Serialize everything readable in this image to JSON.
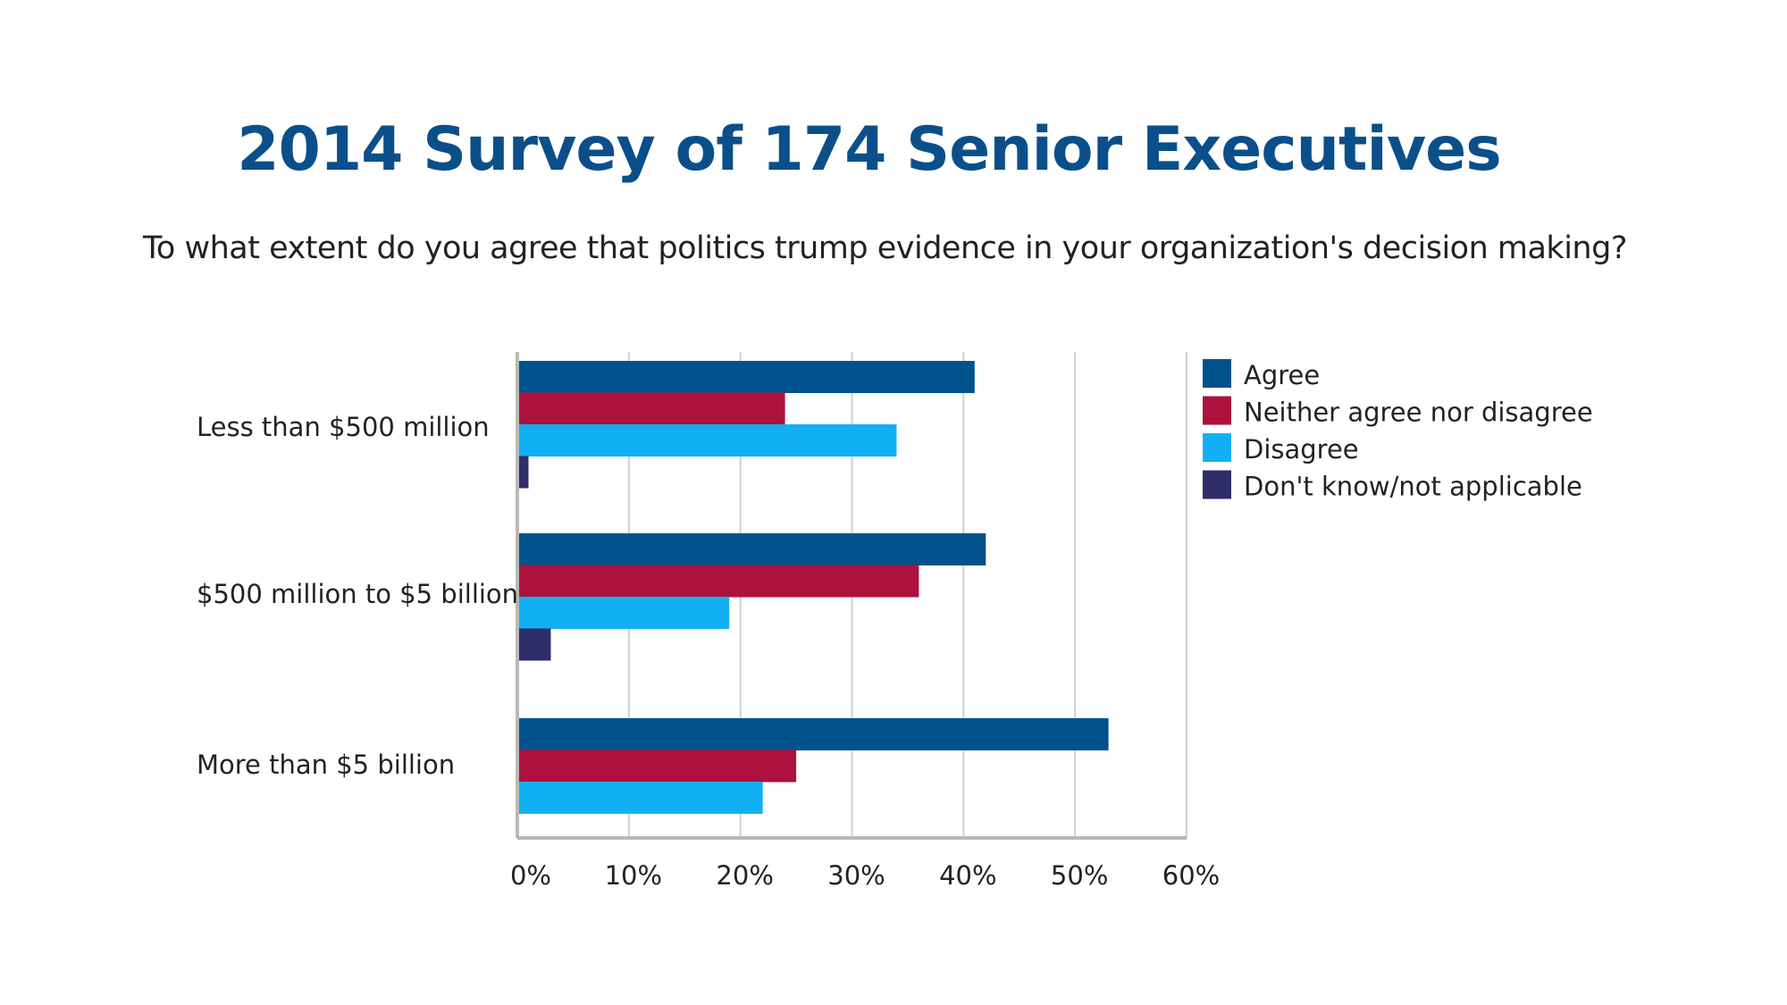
{
  "chart_data": {
    "type": "bar",
    "orientation": "horizontal",
    "title": "2014 Survey of 174 Senior Executives",
    "subtitle": "To what extent do you agree that politics trump evidence in your organization's decision making?",
    "categories": [
      "Less than $500 million",
      "$500 million to $5 billion",
      "More than $5 billion"
    ],
    "series": [
      {
        "name": "Agree",
        "color": "#00528c",
        "values": [
          41,
          42,
          53
        ]
      },
      {
        "name": "Neither agree nor disagree",
        "color": "#ad113e",
        "values": [
          24,
          36,
          25
        ]
      },
      {
        "name": "Disagree",
        "color": "#13aff5",
        "values": [
          34,
          19,
          22
        ]
      },
      {
        "name": "Don't know/not applicable",
        "color": "#2f2e6a",
        "values": [
          1,
          3,
          null
        ]
      }
    ],
    "xlim": [
      0,
      60
    ],
    "xticks": [
      "0%",
      "10%",
      "20%",
      "30%",
      "40%",
      "50%",
      "60%"
    ],
    "grid": true,
    "legend": "right"
  }
}
